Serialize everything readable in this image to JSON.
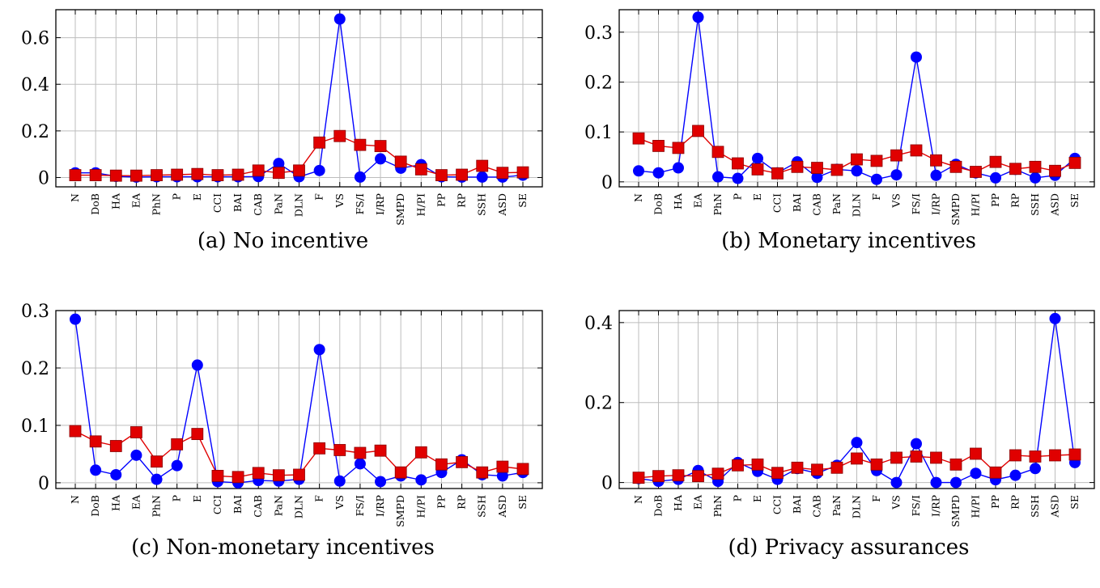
{
  "colors": {
    "series_blue": "#0000ff",
    "series_red": "#e00000",
    "grid": "#bdbdbd",
    "axis": "#000000"
  },
  "chart_data": [
    {
      "type": "line",
      "caption": "(a) No incentive",
      "categories": [
        "N",
        "DoB",
        "HA",
        "EA",
        "PhN",
        "P",
        "E",
        "CCI",
        "BAI",
        "CAB",
        "PaN",
        "DLN",
        "F",
        "VS",
        "FS/I",
        "I/RP",
        "SMPD",
        "H/PI",
        "PP",
        "RP",
        "SSH",
        "ASD",
        "SE"
      ],
      "ylim": [
        -0.04,
        0.72
      ],
      "yticks": [
        0,
        0.2,
        0.4,
        0.6
      ],
      "ytick_labels": [
        "0",
        "0.2",
        "0.4",
        "0.6"
      ],
      "grid": true,
      "series": [
        {
          "marker": "circle",
          "color": "#0000ff",
          "values": [
            0.02,
            0.02,
            0.005,
            0.002,
            0.003,
            0.003,
            0.003,
            0.003,
            0.003,
            0.004,
            0.06,
            0.003,
            0.03,
            0.68,
            0.002,
            0.08,
            0.04,
            0.055,
            0.003,
            0.002,
            0.002,
            0.002,
            0.01
          ]
        },
        {
          "marker": "square",
          "color": "#e00000",
          "values": [
            0.01,
            0.01,
            0.008,
            0.008,
            0.01,
            0.012,
            0.015,
            0.01,
            0.012,
            0.03,
            0.02,
            0.03,
            0.15,
            0.178,
            0.14,
            0.135,
            0.068,
            0.035,
            0.01,
            0.012,
            0.05,
            0.02,
            0.022
          ]
        }
      ]
    },
    {
      "type": "line",
      "caption": "(b) Monetary incentives",
      "categories": [
        "N",
        "DoB",
        "HA",
        "EA",
        "PhN",
        "P",
        "E",
        "CCI",
        "BAI",
        "CAB",
        "PaN",
        "DLN",
        "F",
        "VS",
        "FS/I",
        "I/RP",
        "SMPD",
        "H/PI",
        "PP",
        "RP",
        "SSH",
        "ASD",
        "SE"
      ],
      "ylim": [
        -0.01,
        0.345
      ],
      "yticks": [
        0,
        0.1,
        0.2,
        0.3
      ],
      "ytick_labels": [
        "0",
        "0.1",
        "0.2",
        "0.3"
      ],
      "grid": true,
      "series": [
        {
          "marker": "circle",
          "color": "#0000ff",
          "values": [
            0.022,
            0.018,
            0.028,
            0.33,
            0.01,
            0.007,
            0.047,
            0.018,
            0.04,
            0.009,
            0.025,
            0.022,
            0.005,
            0.014,
            0.25,
            0.013,
            0.035,
            0.018,
            0.008,
            0.025,
            0.008,
            0.013,
            0.047
          ]
        },
        {
          "marker": "square",
          "color": "#e00000",
          "values": [
            0.087,
            0.072,
            0.068,
            0.102,
            0.06,
            0.037,
            0.025,
            0.017,
            0.03,
            0.028,
            0.024,
            0.045,
            0.042,
            0.053,
            0.063,
            0.043,
            0.03,
            0.02,
            0.04,
            0.026,
            0.03,
            0.022,
            0.038
          ]
        }
      ]
    },
    {
      "type": "line",
      "caption": "(c) Non-monetary incentives",
      "categories": [
        "N",
        "DoB",
        "HA",
        "EA",
        "PhN",
        "P",
        "E",
        "CCI",
        "BAI",
        "CAB",
        "PaN",
        "DLN",
        "F",
        "VS",
        "FS/I",
        "I/RP",
        "SMPD",
        "H/PI",
        "PP",
        "RP",
        "SSH",
        "ASD",
        "SE"
      ],
      "ylim": [
        -0.01,
        0.3
      ],
      "yticks": [
        0,
        0.1,
        0.2,
        0.3
      ],
      "ytick_labels": [
        "0",
        "0.1",
        "0.2",
        "0.3"
      ],
      "grid": true,
      "series": [
        {
          "marker": "circle",
          "color": "#0000ff",
          "values": [
            0.285,
            0.022,
            0.014,
            0.048,
            0.006,
            0.03,
            0.205,
            0.002,
            0.0,
            0.004,
            0.003,
            0.006,
            0.232,
            0.003,
            0.033,
            0.002,
            0.012,
            0.005,
            0.018,
            0.04,
            0.014,
            0.012,
            0.018
          ]
        },
        {
          "marker": "square",
          "color": "#e00000",
          "values": [
            0.09,
            0.072,
            0.064,
            0.088,
            0.037,
            0.067,
            0.085,
            0.012,
            0.01,
            0.017,
            0.013,
            0.014,
            0.06,
            0.057,
            0.052,
            0.056,
            0.018,
            0.053,
            0.032,
            0.036,
            0.018,
            0.028,
            0.024
          ]
        }
      ]
    },
    {
      "type": "line",
      "caption": "(d) Privacy assurances",
      "categories": [
        "N",
        "DoB",
        "HA",
        "EA",
        "PhN",
        "P",
        "E",
        "CCI",
        "BAI",
        "CAB",
        "PaN",
        "DLN",
        "F",
        "VS",
        "FS/I",
        "I/RP",
        "SMPD",
        "H/PI",
        "PP",
        "RP",
        "SSH",
        "ASD",
        "SE"
      ],
      "ylim": [
        -0.015,
        0.43
      ],
      "yticks": [
        0,
        0.2,
        0.4
      ],
      "ytick_labels": [
        "0",
        "0.2",
        "0.4"
      ],
      "grid": true,
      "series": [
        {
          "marker": "circle",
          "color": "#0000ff",
          "values": [
            0.01,
            0.003,
            0.008,
            0.03,
            0.003,
            0.05,
            0.028,
            0.008,
            0.035,
            0.023,
            0.043,
            0.1,
            0.03,
            0.0,
            0.097,
            0.0,
            0.0,
            0.023,
            0.007,
            0.018,
            0.035,
            0.41,
            0.05
          ]
        },
        {
          "marker": "square",
          "color": "#e00000",
          "values": [
            0.012,
            0.016,
            0.018,
            0.016,
            0.022,
            0.043,
            0.045,
            0.024,
            0.037,
            0.032,
            0.037,
            0.06,
            0.045,
            0.062,
            0.065,
            0.062,
            0.045,
            0.072,
            0.025,
            0.068,
            0.065,
            0.068,
            0.07
          ]
        }
      ]
    }
  ]
}
